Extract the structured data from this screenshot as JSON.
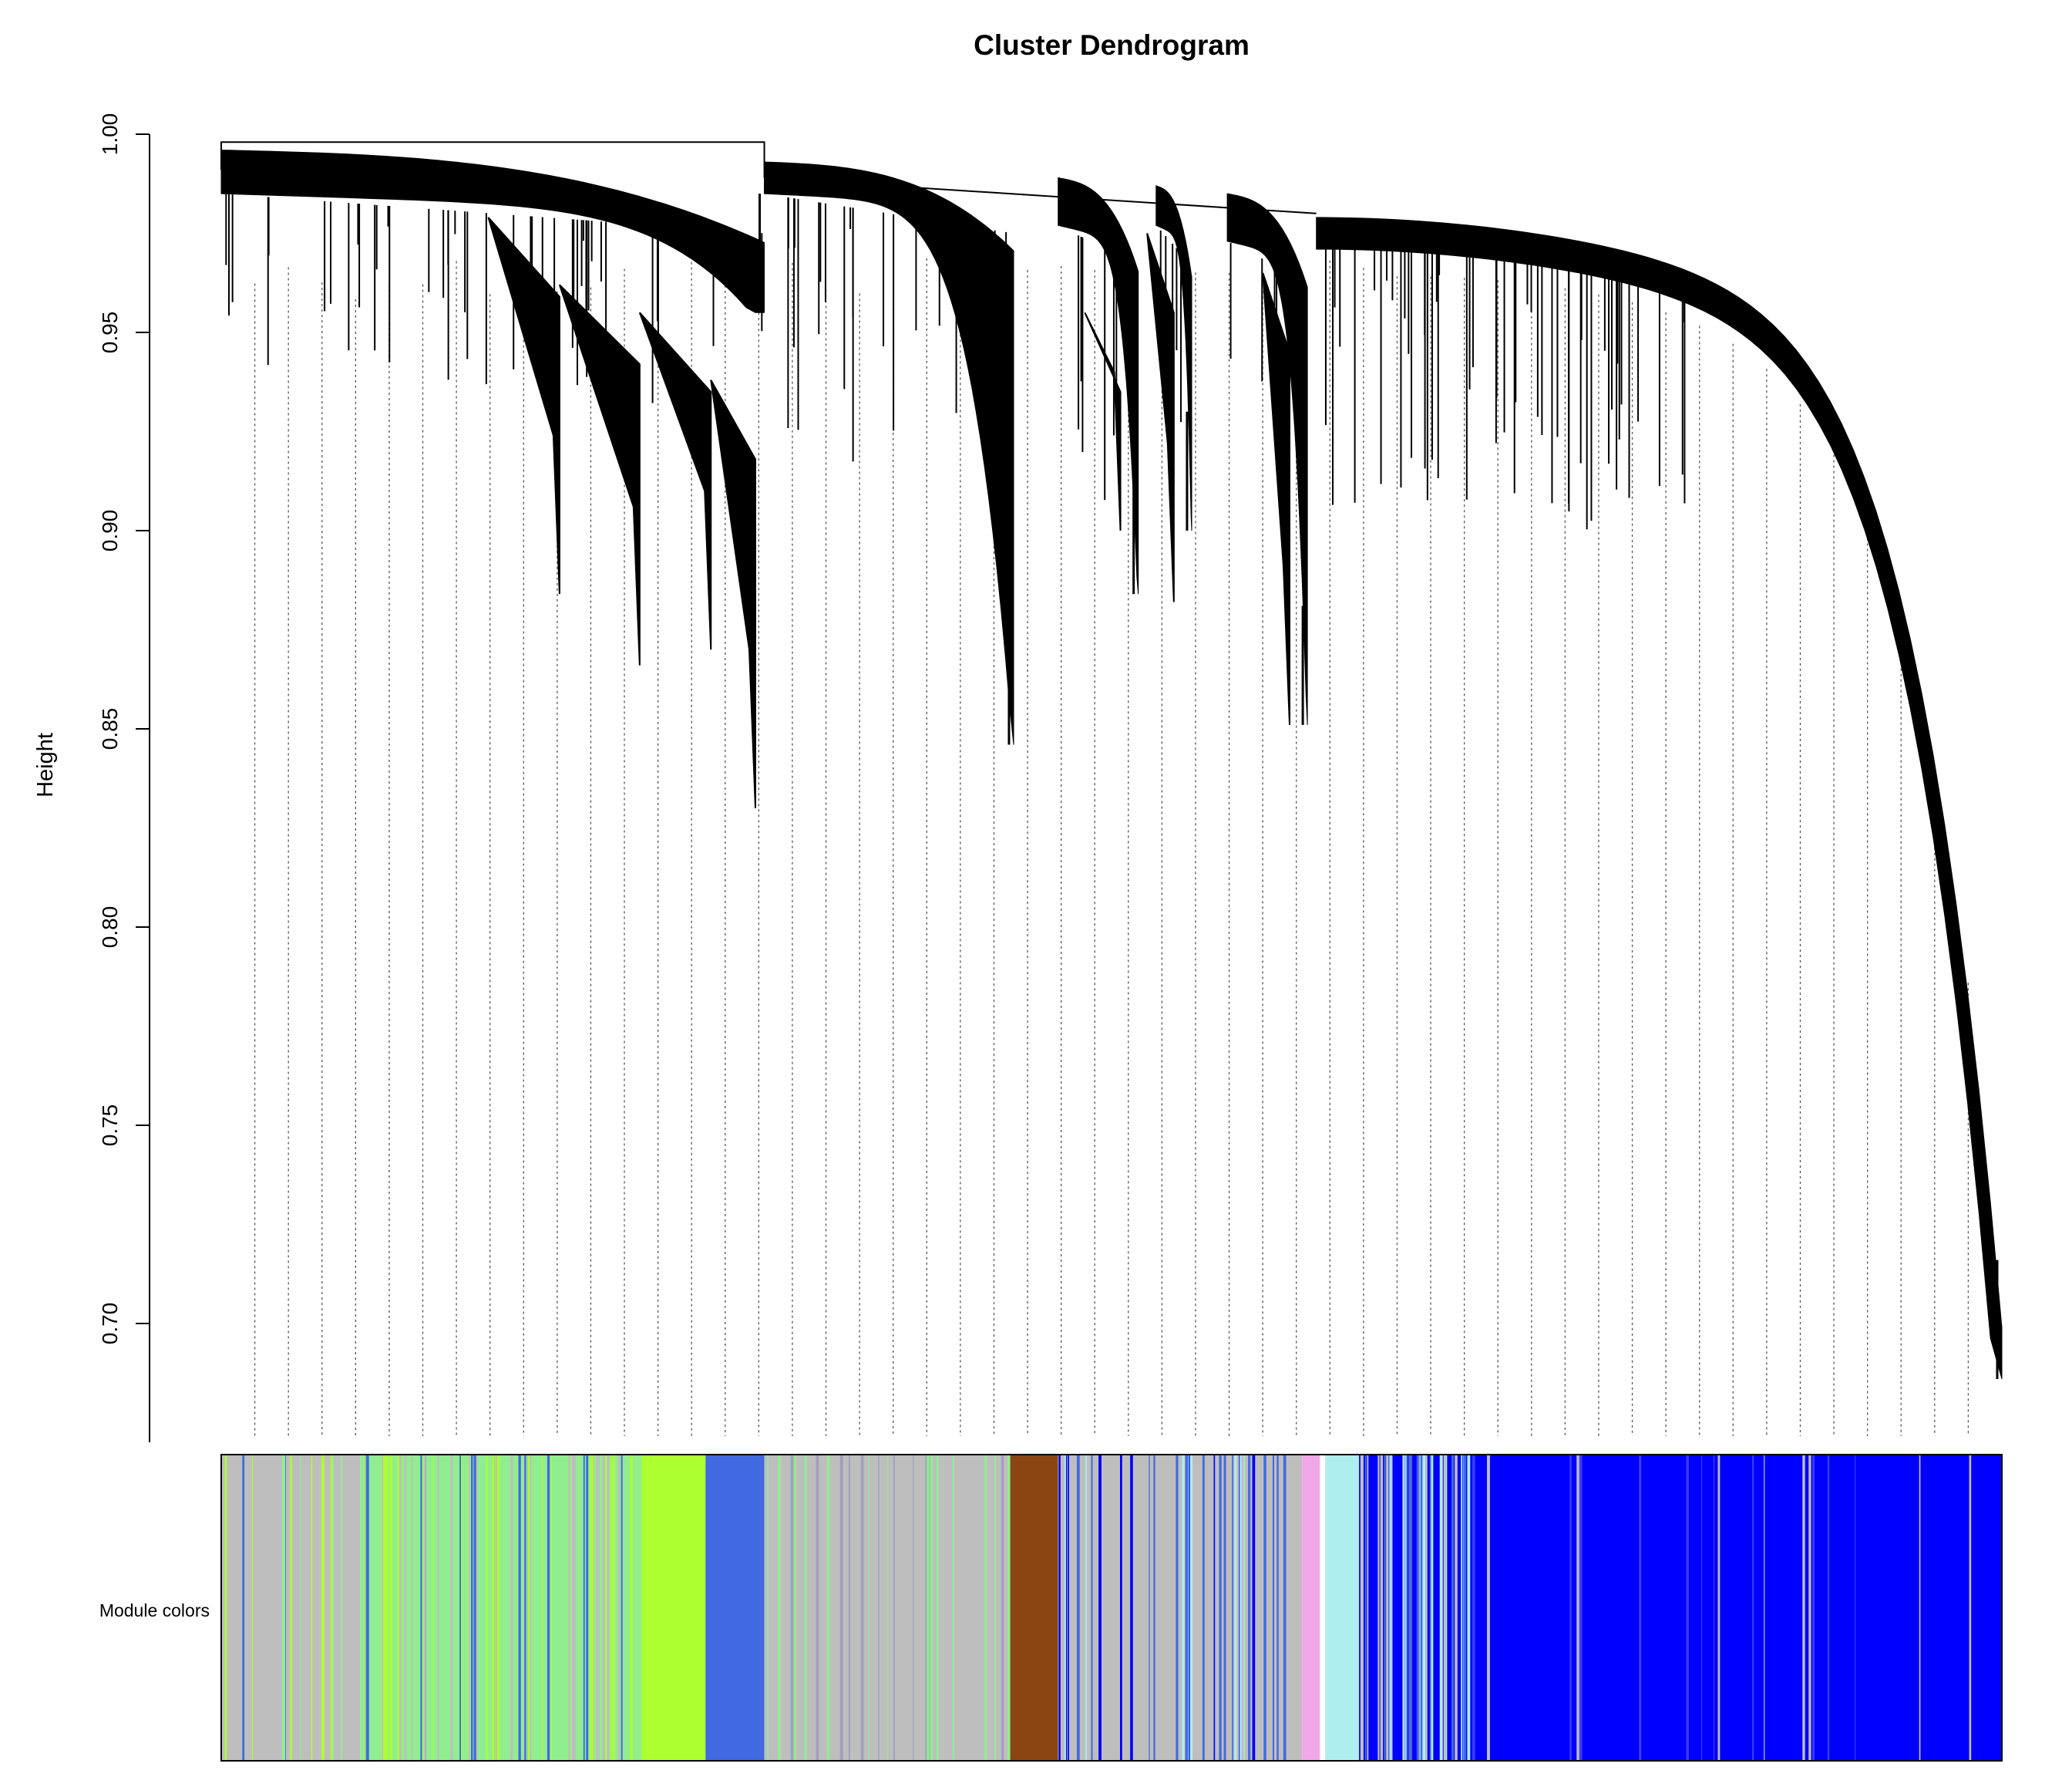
{
  "chart_data": {
    "type": "dendrogram",
    "title": "Cluster Dendrogram",
    "ylabel": "Height",
    "xlabel": "",
    "ylim": [
      0.67,
      1.0
    ],
    "yticks": [
      0.7,
      0.75,
      0.8,
      0.85,
      0.9,
      0.95,
      1.0
    ],
    "ytick_labels": [
      "0.70",
      "0.75",
      "0.80",
      "0.85",
      "0.90",
      "0.95",
      "1.00"
    ],
    "color_bar_label": "Module colors",
    "top_merge_height": 0.998,
    "branches": [
      {
        "from": 0.0,
        "to": 0.305,
        "merge": 0.998,
        "top": 0.996,
        "bottom": 0.985,
        "depth": 0.955
      },
      {
        "from": 0.305,
        "to": 0.445,
        "merge": 0.989,
        "top": 0.993,
        "bottom": 0.985,
        "depth": 0.846
      },
      {
        "from": 0.47,
        "to": 0.515,
        "merge": 0.989,
        "top": 0.989,
        "bottom": 0.977,
        "depth": 0.884
      },
      {
        "from": 0.525,
        "to": 0.545,
        "merge": 0.987,
        "top": 0.987,
        "bottom": 0.977,
        "depth": 0.9
      },
      {
        "from": 0.565,
        "to": 0.61,
        "merge": 0.981,
        "top": 0.985,
        "bottom": 0.973,
        "depth": 0.851
      },
      {
        "from": 0.615,
        "to": 1.0,
        "merge": 0.98,
        "top": 0.979,
        "bottom": 0.971,
        "depth": 0.686
      }
    ],
    "module_colors": [
      {
        "color": "grey",
        "hex": "#bebebe",
        "from": 0.0,
        "to": 0.078
      },
      {
        "color": "lightgreen",
        "hex": "#90ee90",
        "from": 0.078,
        "to": 0.272
      },
      {
        "color": "greenyellow",
        "hex": "#adff2f",
        "from": 0.236,
        "to": 0.272
      },
      {
        "color": "royalblue",
        "hex": "#4169e1",
        "from": 0.272,
        "to": 0.305
      },
      {
        "color": "grey",
        "hex": "#bebebe",
        "from": 0.305,
        "to": 0.443
      },
      {
        "color": "saddlebrown",
        "hex": "#8b4513",
        "from": 0.443,
        "to": 0.47
      },
      {
        "color": "grey",
        "hex": "#bebebe",
        "from": 0.47,
        "to": 0.607
      },
      {
        "color": "plum",
        "hex": "#f0a8e8",
        "from": 0.607,
        "to": 0.617
      },
      {
        "color": "paleturquoise",
        "hex": "#afeeee",
        "from": 0.62,
        "to": 0.639
      },
      {
        "color": "blue",
        "hex": "#0000ff",
        "from": 0.639,
        "to": 1.0
      }
    ]
  }
}
